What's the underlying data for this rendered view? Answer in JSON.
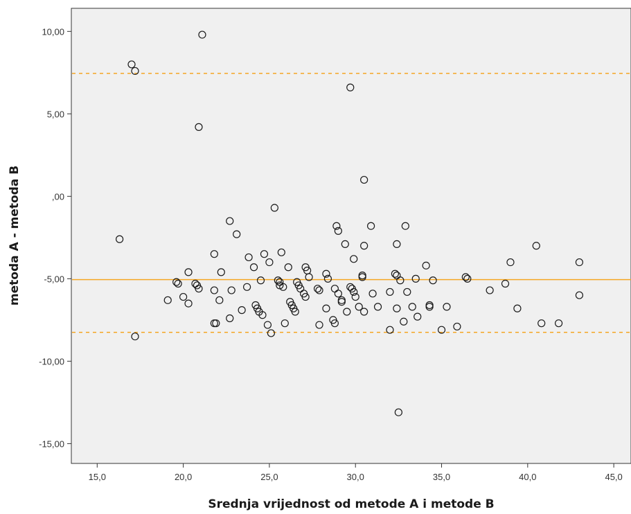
{
  "chart_data": {
    "type": "scatter",
    "title": "",
    "xlabel": "Srednja vrijednost od metode A i metode B",
    "ylabel": "metoda A - metoda B",
    "xlim": [
      13.5,
      46.0
    ],
    "ylim": [
      -16.2,
      11.4
    ],
    "x_ticks": [
      15,
      20,
      25,
      30,
      35,
      40,
      45
    ],
    "x_tick_labels": [
      "15,0",
      "20,0",
      "25,0",
      "30,0",
      "35,0",
      "40,0",
      "45,0"
    ],
    "y_ticks": [
      10,
      5,
      0,
      -5,
      -10,
      -15
    ],
    "y_tick_labels": [
      "10,00",
      "5,00",
      ",00",
      "-5,00",
      "-10,00",
      "-15,00"
    ],
    "grid": false,
    "legend": "none",
    "colors": {
      "plot_background": "#f0f0f0",
      "marker_stroke": "#1a1a1a",
      "reference_line": "#f5a623",
      "axis": "#333333"
    },
    "reference_lines": [
      {
        "value": 7.45,
        "style": "dashed"
      },
      {
        "value": -5.05,
        "style": "solid"
      },
      {
        "value": -8.25,
        "style": "dashed"
      }
    ],
    "points": [
      [
        17.0,
        8.0
      ],
      [
        17.2,
        7.6
      ],
      [
        21.1,
        9.8
      ],
      [
        20.9,
        4.2
      ],
      [
        29.7,
        6.6
      ],
      [
        30.5,
        1.0
      ],
      [
        25.3,
        -0.7
      ],
      [
        16.3,
        -2.6
      ],
      [
        17.2,
        -8.5
      ],
      [
        19.1,
        -6.3
      ],
      [
        19.6,
        -5.2
      ],
      [
        19.7,
        -5.3
      ],
      [
        20.0,
        -6.1
      ],
      [
        20.3,
        -6.5
      ],
      [
        20.3,
        -4.6
      ],
      [
        20.7,
        -5.3
      ],
      [
        20.8,
        -5.4
      ],
      [
        20.9,
        -5.6
      ],
      [
        21.8,
        -3.5
      ],
      [
        21.8,
        -5.7
      ],
      [
        21.8,
        -7.7
      ],
      [
        21.9,
        -7.7
      ],
      [
        22.1,
        -6.3
      ],
      [
        22.2,
        -4.6
      ],
      [
        22.7,
        -1.5
      ],
      [
        22.7,
        -7.4
      ],
      [
        22.8,
        -5.7
      ],
      [
        23.1,
        -2.3
      ],
      [
        23.4,
        -6.9
      ],
      [
        23.7,
        -5.5
      ],
      [
        23.8,
        -3.7
      ],
      [
        24.1,
        -4.3
      ],
      [
        24.2,
        -6.6
      ],
      [
        24.3,
        -6.8
      ],
      [
        24.4,
        -7.0
      ],
      [
        24.5,
        -5.1
      ],
      [
        24.6,
        -7.2
      ],
      [
        24.7,
        -3.5
      ],
      [
        24.9,
        -7.8
      ],
      [
        25.0,
        -4.0
      ],
      [
        25.1,
        -8.3
      ],
      [
        25.5,
        -5.1
      ],
      [
        25.6,
        -5.2
      ],
      [
        25.6,
        -5.4
      ],
      [
        25.7,
        -3.4
      ],
      [
        25.8,
        -5.5
      ],
      [
        25.9,
        -7.7
      ],
      [
        26.1,
        -4.3
      ],
      [
        26.2,
        -6.4
      ],
      [
        26.3,
        -6.6
      ],
      [
        26.4,
        -6.8
      ],
      [
        26.5,
        -7.0
      ],
      [
        26.6,
        -5.2
      ],
      [
        26.7,
        -5.4
      ],
      [
        26.8,
        -5.6
      ],
      [
        27.0,
        -5.9
      ],
      [
        27.1,
        -6.1
      ],
      [
        27.1,
        -4.3
      ],
      [
        27.2,
        -4.5
      ],
      [
        27.3,
        -4.9
      ],
      [
        27.8,
        -5.6
      ],
      [
        27.9,
        -5.7
      ],
      [
        27.9,
        -7.8
      ],
      [
        28.3,
        -4.7
      ],
      [
        28.3,
        -6.8
      ],
      [
        28.4,
        -5.0
      ],
      [
        28.7,
        -7.5
      ],
      [
        28.8,
        -5.6
      ],
      [
        28.8,
        -7.7
      ],
      [
        28.9,
        -1.8
      ],
      [
        29.0,
        -2.1
      ],
      [
        29.0,
        -5.9
      ],
      [
        29.2,
        -6.3
      ],
      [
        29.2,
        -6.4
      ],
      [
        29.4,
        -2.9
      ],
      [
        29.5,
        -7.0
      ],
      [
        29.7,
        -5.5
      ],
      [
        29.8,
        -5.6
      ],
      [
        29.9,
        -3.8
      ],
      [
        29.9,
        -5.8
      ],
      [
        30.0,
        -6.1
      ],
      [
        30.2,
        -6.7
      ],
      [
        30.4,
        -4.8
      ],
      [
        30.4,
        -4.9
      ],
      [
        30.5,
        -3.0
      ],
      [
        30.5,
        -7.0
      ],
      [
        30.9,
        -1.8
      ],
      [
        31.0,
        -5.9
      ],
      [
        31.3,
        -6.7
      ],
      [
        32.0,
        -5.8
      ],
      [
        32.0,
        -8.1
      ],
      [
        32.3,
        -4.7
      ],
      [
        32.4,
        -4.8
      ],
      [
        32.4,
        -2.9
      ],
      [
        32.4,
        -6.8
      ],
      [
        32.5,
        -13.1
      ],
      [
        32.6,
        -5.1
      ],
      [
        32.8,
        -7.6
      ],
      [
        32.9,
        -1.8
      ],
      [
        33.0,
        -5.8
      ],
      [
        33.3,
        -6.7
      ],
      [
        33.5,
        -5.0
      ],
      [
        33.6,
        -7.3
      ],
      [
        34.1,
        -4.2
      ],
      [
        34.3,
        -6.6
      ],
      [
        34.3,
        -6.7
      ],
      [
        34.5,
        -5.1
      ],
      [
        35.0,
        -8.1
      ],
      [
        35.3,
        -6.7
      ],
      [
        35.9,
        -7.9
      ],
      [
        36.4,
        -4.9
      ],
      [
        36.5,
        -5.0
      ],
      [
        37.8,
        -5.7
      ],
      [
        38.7,
        -5.3
      ],
      [
        39.0,
        -4.0
      ],
      [
        39.4,
        -6.8
      ],
      [
        40.5,
        -3.0
      ],
      [
        40.8,
        -7.7
      ],
      [
        41.8,
        -7.7
      ],
      [
        43.0,
        -4.0
      ],
      [
        43.0,
        -6.0
      ]
    ]
  }
}
